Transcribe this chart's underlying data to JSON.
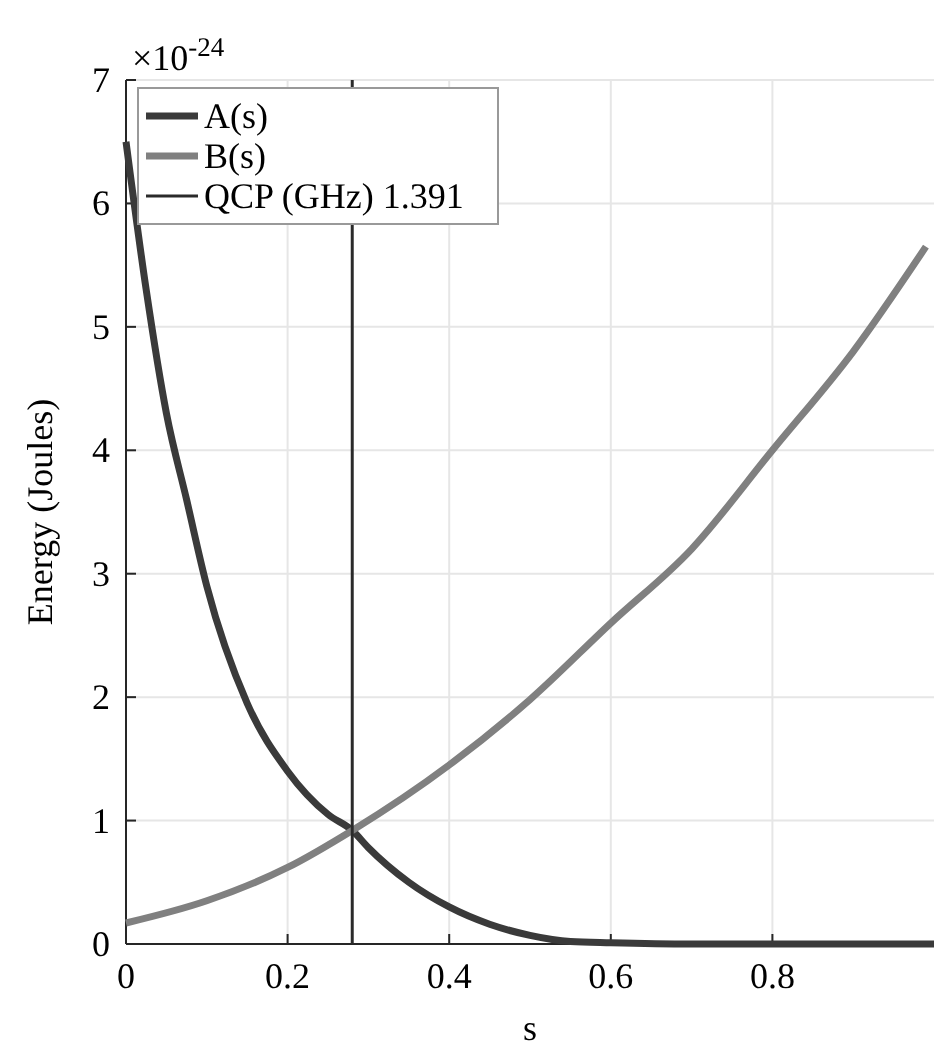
{
  "chart_data": {
    "type": "line",
    "xlabel": "s",
    "ylabel": "Energy (Joules)",
    "annotations": [
      "×10$^{-24}$"
    ],
    "xlim": [
      0,
      1
    ],
    "ylim": [
      0,
      7
    ],
    "xticks": [
      0,
      0.2,
      0.4,
      0.6,
      0.8
    ],
    "yticks": [
      0,
      1,
      2,
      3,
      4,
      5,
      6,
      7
    ],
    "grid": true,
    "legend": "top left",
    "line_style": "solid",
    "marker": "none",
    "series": [
      {
        "name": "A(s)",
        "color": "#3a3a3a",
        "x": [
          0,
          0.025,
          0.05,
          0.075,
          0.1,
          0.15,
          0.2,
          0.25,
          0.28,
          0.3,
          0.35,
          0.4,
          0.45,
          0.5,
          0.55,
          0.6,
          0.7,
          0.8,
          0.9,
          1
        ],
        "values": [
          6.5,
          5.3,
          4.3,
          3.6,
          2.9,
          1.95,
          1.4,
          1.05,
          0.92,
          0.78,
          0.5,
          0.3,
          0.16,
          0.07,
          0.02,
          0.01,
          0,
          0,
          0,
          0
        ]
      },
      {
        "name": "B(s)",
        "color": "#808080",
        "x": [
          0,
          0.1,
          0.2,
          0.28,
          0.4,
          0.5,
          0.6,
          0.7,
          0.8,
          0.9,
          0.99
        ],
        "values": [
          0.17,
          0.35,
          0.62,
          0.92,
          1.45,
          1.98,
          2.6,
          3.2,
          4.0,
          4.8,
          5.65
        ]
      }
    ],
    "ref_lines": [
      {
        "axis": "x",
        "value": 0.28,
        "label": "QCP (GHz) 1.391",
        "color": "#2a2a2a",
        "line_style": "solid"
      }
    ]
  }
}
